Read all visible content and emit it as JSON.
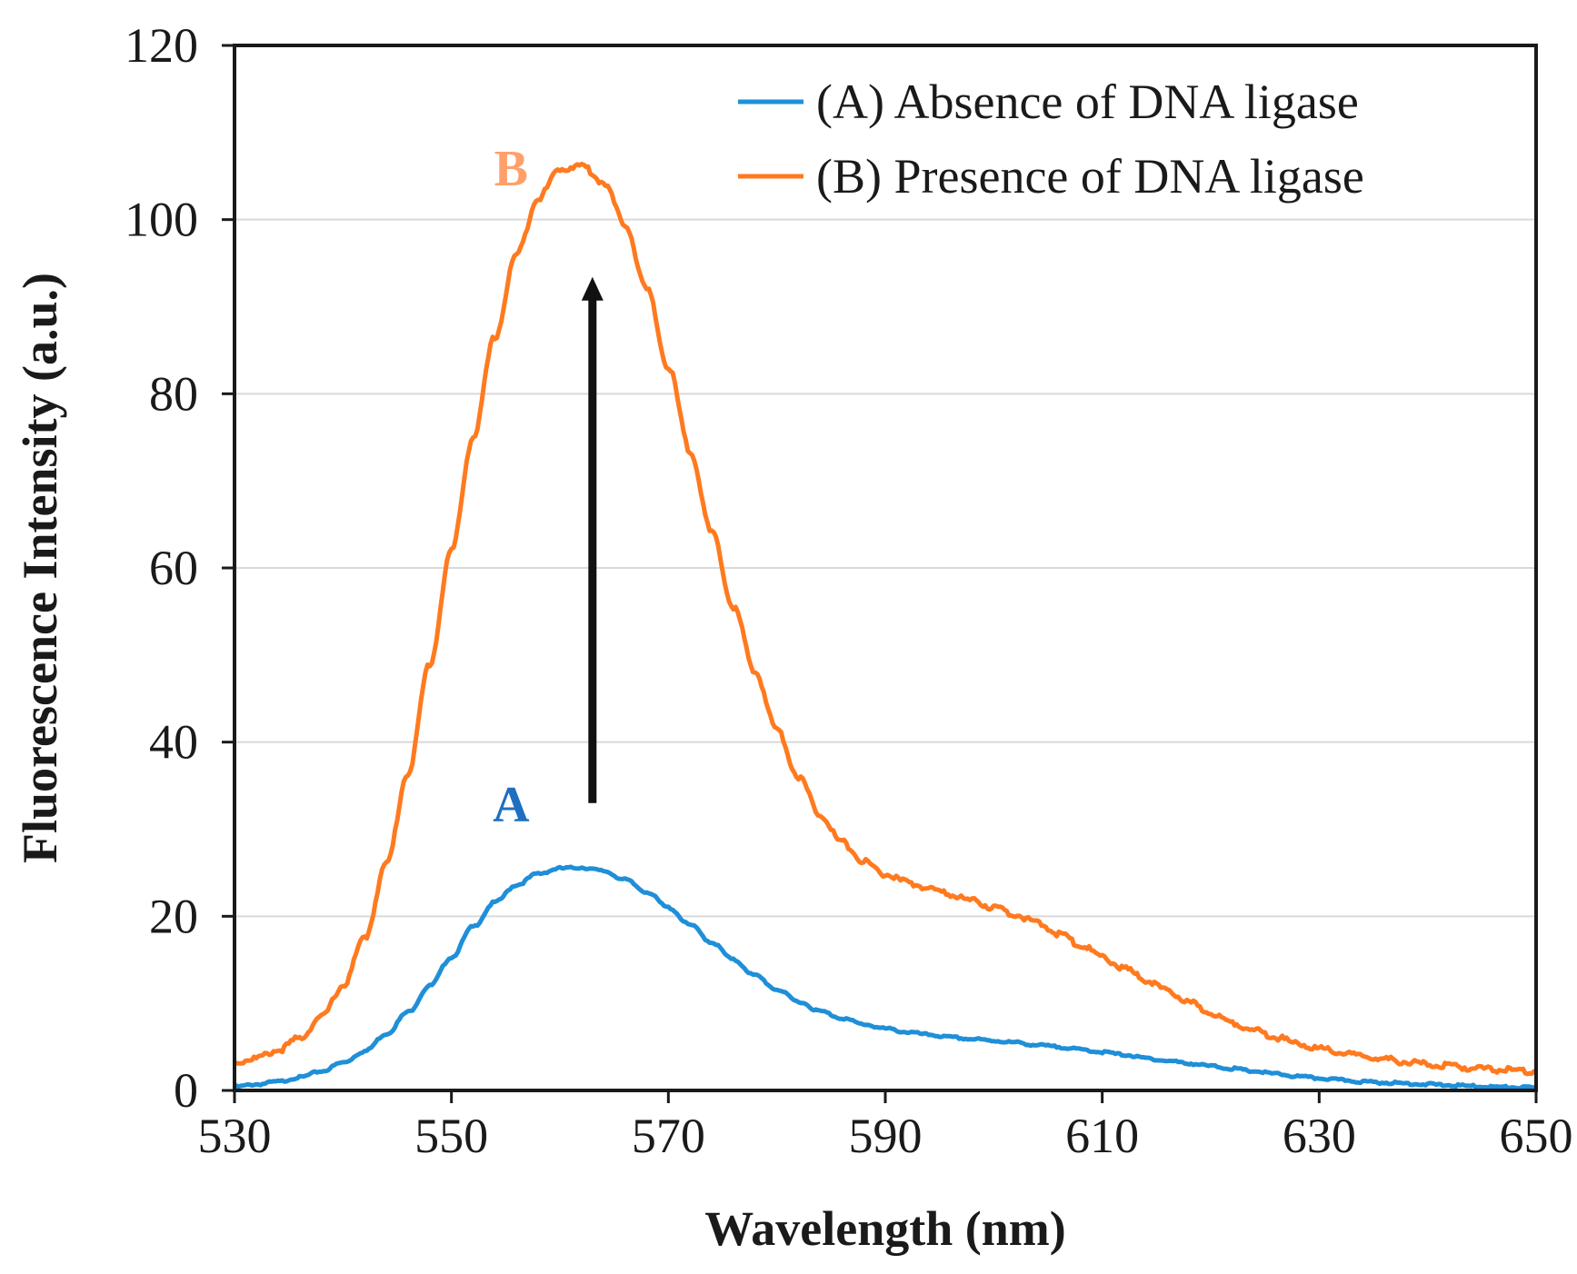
{
  "chart_data": {
    "type": "line",
    "title": "",
    "xlabel": "Wavelength (nm)",
    "ylabel": "Fluorescence Intensity (a.u.)",
    "xlim": [
      530,
      650
    ],
    "ylim": [
      0,
      120
    ],
    "xticks": [
      530,
      550,
      570,
      590,
      610,
      630,
      650
    ],
    "yticks": [
      0,
      20,
      40,
      60,
      80,
      100,
      120
    ],
    "grid": "horizontal",
    "legend_position": "top-right",
    "series": [
      {
        "name": "(A) Absence of DNA ligase",
        "color": "#1f8fd8",
        "x": [
          530,
          532,
          534,
          536,
          538,
          540,
          542,
          544,
          546,
          548,
          550,
          552,
          554,
          556,
          558,
          560,
          562,
          564,
          566,
          568,
          570,
          572,
          574,
          576,
          578,
          580,
          582,
          584,
          586,
          588,
          590,
          592,
          594,
          596,
          598,
          600,
          602,
          604,
          606,
          608,
          610,
          612,
          614,
          616,
          618,
          620,
          622,
          624,
          626,
          628,
          630,
          632,
          634,
          636,
          638,
          640,
          642,
          644,
          646,
          648,
          650
        ],
        "y": [
          0.4,
          0.7,
          1.0,
          1.5,
          2.2,
          3.2,
          4.5,
          6.5,
          9.0,
          12.0,
          15.3,
          18.8,
          21.6,
          23.6,
          24.9,
          25.5,
          25.6,
          25.2,
          24.2,
          22.8,
          21.0,
          19.0,
          17.0,
          15.0,
          13.2,
          11.6,
          10.2,
          9.1,
          8.3,
          7.6,
          7.1,
          6.7,
          6.4,
          6.1,
          5.9,
          5.7,
          5.5,
          5.2,
          5.0,
          4.7,
          4.4,
          4.1,
          3.7,
          3.4,
          3.1,
          2.8,
          2.5,
          2.2,
          1.9,
          1.6,
          1.4,
          1.2,
          1.0,
          0.9,
          0.8,
          0.7,
          0.6,
          0.5,
          0.4,
          0.35,
          0.3
        ]
      },
      {
        "name": "(B) Presence of DNA ligase",
        "color": "#ff7a1f",
        "x": [
          530,
          532,
          534,
          536,
          538,
          540,
          542,
          544,
          546,
          548,
          550,
          552,
          554,
          556,
          558,
          560,
          562,
          564,
          566,
          568,
          570,
          572,
          574,
          576,
          578,
          580,
          582,
          584,
          586,
          588,
          590,
          592,
          594,
          596,
          598,
          600,
          602,
          604,
          606,
          608,
          610,
          612,
          614,
          616,
          618,
          620,
          622,
          624,
          626,
          628,
          630,
          632,
          634,
          636,
          638,
          640,
          642,
          644,
          646,
          648,
          650
        ],
        "y": [
          3.2,
          3.7,
          4.6,
          6.0,
          8.4,
          12.0,
          17.5,
          26.0,
          36.5,
          49.0,
          62.0,
          75.0,
          86.5,
          96.0,
          102.5,
          105.8,
          106.2,
          104.3,
          99.5,
          92.0,
          83.0,
          73.5,
          64.0,
          55.5,
          48.0,
          41.5,
          36.0,
          31.7,
          28.5,
          26.3,
          24.8,
          23.9,
          23.2,
          22.5,
          21.8,
          21.0,
          20.2,
          19.2,
          18.0,
          16.7,
          15.3,
          14.0,
          12.7,
          11.4,
          10.1,
          8.9,
          7.8,
          6.9,
          6.1,
          5.4,
          4.8,
          4.3,
          3.9,
          3.6,
          3.3,
          3.0,
          2.8,
          2.6,
          2.4,
          2.3,
          2.2
        ]
      }
    ],
    "annotations": [
      {
        "text": "A",
        "x": 555.5,
        "y": 33,
        "color": "#1f6fc0"
      },
      {
        "text": "B",
        "x": 555.5,
        "y": 106,
        "color": "#ffa06a"
      }
    ],
    "arrow": {
      "x": 563,
      "y_from": 33,
      "y_to": 93,
      "color": "#111111"
    }
  }
}
